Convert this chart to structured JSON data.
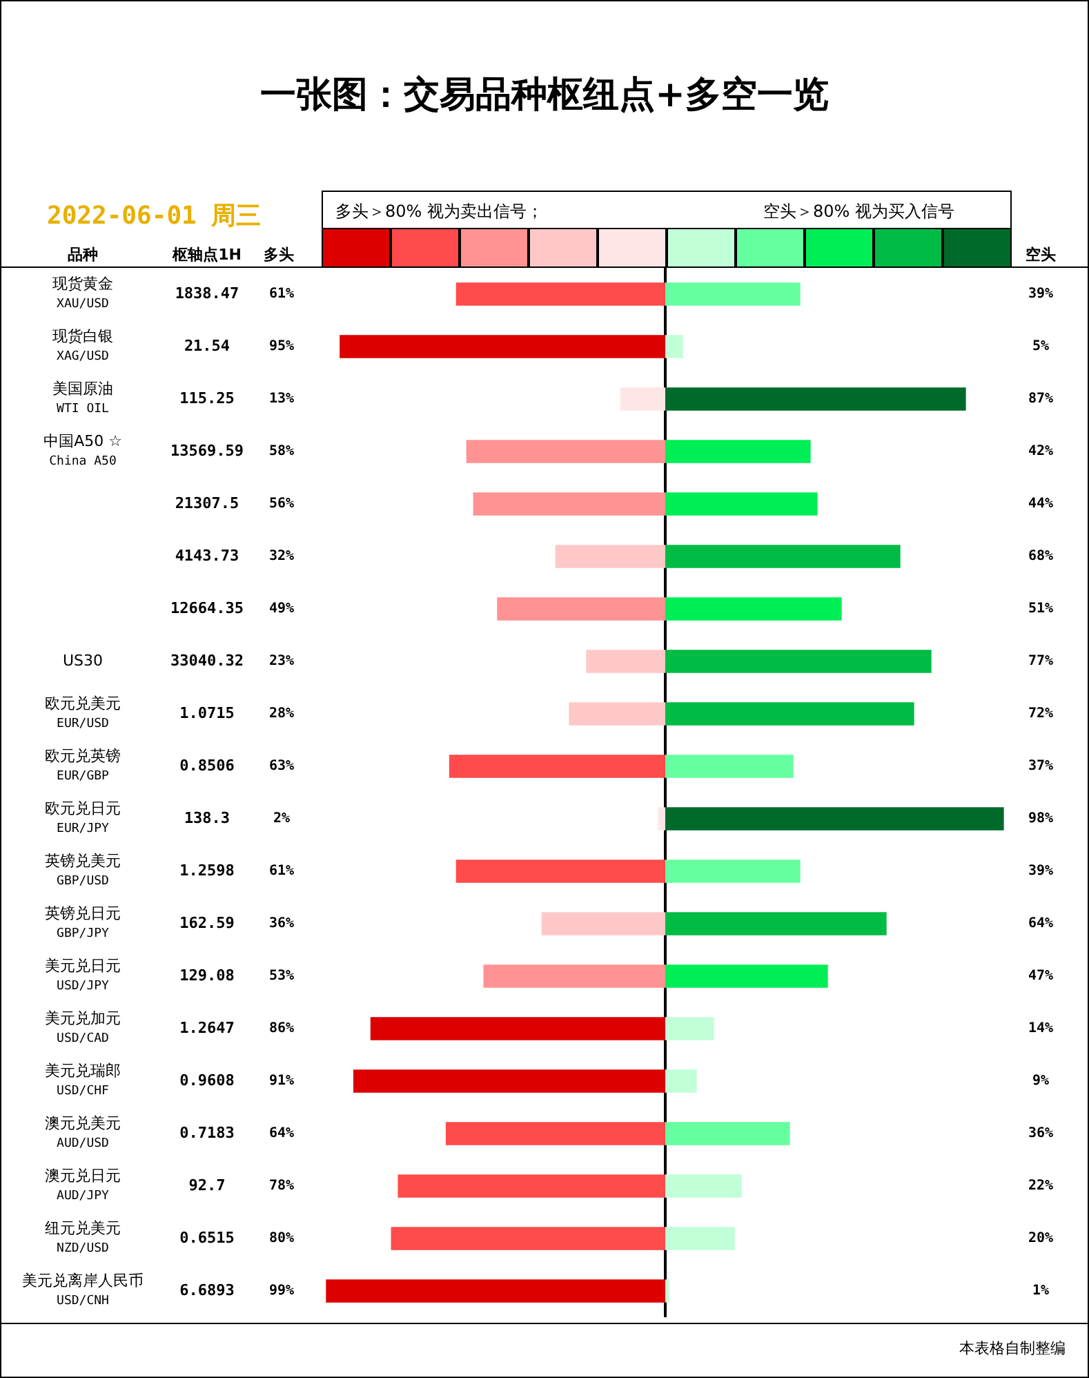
{
  "chart_data": [
    {
      "type": "other",
      "title": "一张图：交易品种枢纽点+多空一览",
      "subtitle": "2022-06-01 周三",
      "ylabel": "枢轴点1H",
      "data_labels": true,
      "values": [
        1838.47,
        21.54,
        115.25,
        13569.59,
        21307.5,
        4143.73,
        12664.35,
        33040.32,
        1.0715,
        0.8506,
        138.3,
        1.2598,
        162.59,
        129.08,
        1.2647,
        0.9608,
        0.7183,
        92.7,
        0.6515,
        6.6893
      ],
      "annotations": [
        "本表格自制整编"
      ]
    },
    {
      "type": "bar",
      "orientation": "horizontal",
      "title": "多头",
      "ylabel": "品种",
      "tick_labels": "y",
      "xlim": [
        100,
        0
      ],
      "categories": [
        "现货黄金\nXAU/USD",
        "现货白银\nXAG/USD",
        "美国原油\nWTI OIL",
        "中国A50 ☆\nChina A50",
        null,
        null,
        null,
        "US30",
        "欧元兑美元\nEUR/USD",
        "欧元兑英镑\nEUR/GBP",
        "欧元兑日元\nEUR/JPY",
        "英镑兑美元\nGBP/USD",
        "英镑兑日元\nGBP/JPY",
        "美元兑日元\nUSD/JPY",
        "美元兑加元\nUSD/CAD",
        "美元兑瑞郎\nUSD/CHF",
        "澳元兑美元\nAUD/USD",
        "澳元兑日元\nAUD/JPY",
        "纽元兑美元\nNZD/USD",
        "美元兑离岸人民币\nUSD/CNH"
      ],
      "values": [
        61,
        95,
        13,
        58,
        56,
        32,
        49,
        23,
        28,
        63,
        2,
        61,
        36,
        53,
        86,
        91,
        64,
        78,
        80,
        99
      ],
      "value_labels": [
        "61%",
        "95%",
        "13%",
        "58%",
        "56%",
        "32%",
        "49%",
        "23%",
        "28%",
        "63%",
        "2%",
        "61%",
        "36%",
        "53%",
        "86%",
        "91%",
        "64%",
        "78%",
        "80%",
        "99%"
      ],
      "colors": [
        "#ff4b4b",
        "#dd0000",
        "#ffe6e6",
        "#ff9393",
        "#ff9393",
        "#ffc8c8",
        "#ff9393",
        "#ffc8c8",
        "#ffc8c8",
        "#ff4b4b",
        "#ffe6e6",
        "#ff4b4b",
        "#ffc8c8",
        "#ff9393",
        "#dd0000",
        "#dd0000",
        "#ff4b4b",
        "#ff4b4b",
        "#ff4b4b",
        "#dd0000"
      ],
      "annotations": [
        "多头＞80% 视为卖出信号；"
      ]
    },
    {
      "type": "bar",
      "orientation": "horizontal",
      "xlabel": "空头",
      "tick_labels": false,
      "values": [
        39,
        5,
        87,
        42,
        44,
        68,
        51,
        77,
        72,
        37,
        98,
        39,
        64,
        47,
        14,
        9,
        36,
        22,
        20,
        1
      ],
      "value_labels": [
        "39%",
        "5%",
        "87%",
        "42%",
        "44%",
        "68%",
        "51%",
        "77%",
        "72%",
        "37%",
        "98%",
        "39%",
        "64%",
        "47%",
        "14%",
        "9%",
        "36%",
        "22%",
        "20%",
        "1%"
      ],
      "colors": [
        "#66ffa0",
        "#c0ffd8",
        "#006a2a",
        "#00ee55",
        "#00ee55",
        "#00bb44",
        "#00ee55",
        "#00bb44",
        "#00bb44",
        "#66ffa0",
        "#006a2a",
        "#66ffa0",
        "#00bb44",
        "#00ee55",
        "#c0ffd8",
        "#c0ffd8",
        "#66ffa0",
        "#c0ffd8",
        "#c0ffd8",
        "#c0ffd8"
      ],
      "annotations": [
        "空头＞80% 视为买入信号"
      ]
    }
  ]
}
